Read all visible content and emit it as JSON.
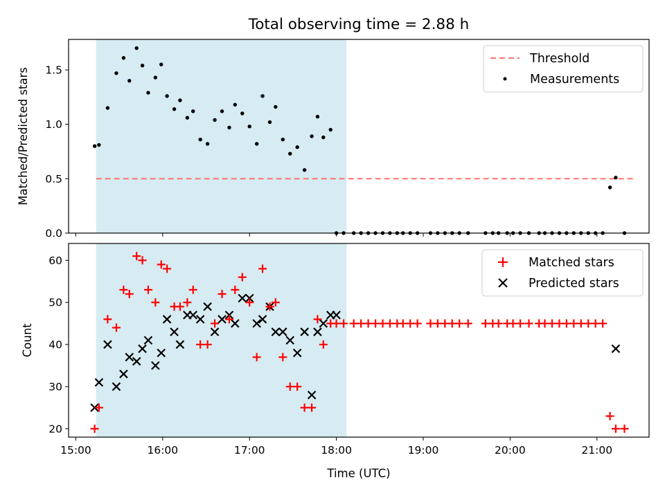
{
  "chart_data": {
    "type": "scatter",
    "title": "Total observing time = 2.88 h",
    "xlabel": "Time (UTC)",
    "x_ticks": [
      "15:00",
      "16:00",
      "17:00",
      "18:00",
      "19:00",
      "20:00",
      "21:00"
    ],
    "observing_window": {
      "start": "15:14",
      "end": "18:07"
    },
    "colors": {
      "window": "#add8e6",
      "threshold": "#ff7070",
      "matched": "#ff0000",
      "predicted": "#000000",
      "measurements": "#000000"
    },
    "top": {
      "ylabel": "Matched/Predicted stars",
      "ylim": [
        0,
        1.78
      ],
      "y_ticks": [
        "0.0",
        "0.5",
        "1.0",
        "1.5"
      ],
      "threshold": {
        "name": "Threshold",
        "value": 0.5,
        "x_range": [
          "15:14",
          "21:27"
        ]
      },
      "legend": [
        "Threshold",
        "Measurements"
      ],
      "measurements": {
        "name": "Measurements",
        "x": [
          "15:13",
          "15:16",
          "15:22",
          "15:28",
          "15:33",
          "15:37",
          "15:42",
          "15:46",
          "15:50",
          "15:55",
          "15:59",
          "16:03",
          "16:08",
          "16:12",
          "16:17",
          "16:21",
          "16:26",
          "16:31",
          "16:36",
          "16:41",
          "16:46",
          "16:50",
          "16:55",
          "17:00",
          "17:05",
          "17:09",
          "17:14",
          "17:18",
          "17:23",
          "17:28",
          "17:33",
          "17:38",
          "17:43",
          "17:47",
          "17:51",
          "17:56",
          "18:00",
          "18:05",
          "18:12",
          "18:17",
          "18:22",
          "18:27",
          "18:32",
          "18:37",
          "18:42",
          "18:46",
          "18:51",
          "18:56",
          "19:05",
          "19:10",
          "19:15",
          "19:20",
          "19:25",
          "19:31",
          "19:43",
          "19:48",
          "19:52",
          "19:58",
          "20:02",
          "20:07",
          "20:13",
          "20:20",
          "20:24",
          "20:29",
          "20:34",
          "20:39",
          "20:44",
          "20:49",
          "20:54",
          "20:59",
          "21:04",
          "21:09",
          "21:13",
          "21:19"
        ],
        "y": [
          0.8,
          0.81,
          1.15,
          1.47,
          1.61,
          1.4,
          1.7,
          1.54,
          1.29,
          1.43,
          1.55,
          1.26,
          1.14,
          1.22,
          1.06,
          1.12,
          0.86,
          0.82,
          1.04,
          1.12,
          0.97,
          1.18,
          1.1,
          0.98,
          0.82,
          1.26,
          1.02,
          1.16,
          0.86,
          0.73,
          0.79,
          0.58,
          0.89,
          1.07,
          0.88,
          0.95,
          0,
          0,
          0,
          0,
          0,
          0,
          0,
          0,
          0,
          0,
          0,
          0,
          0,
          0,
          0,
          0,
          0,
          0,
          0,
          0,
          0,
          0,
          0,
          0,
          0,
          0,
          0,
          0,
          0,
          0,
          0,
          0,
          0,
          0,
          0,
          0.42,
          0.51,
          0
        ]
      }
    },
    "bottom": {
      "ylabel": "Count",
      "ylim": [
        18,
        64
      ],
      "y_ticks": [
        "20",
        "30",
        "40",
        "50",
        "60"
      ],
      "legend": [
        "Matched stars",
        "Predicted stars"
      ],
      "series": [
        {
          "name": "Matched stars",
          "marker": "+",
          "x": [
            "15:13",
            "15:16",
            "15:22",
            "15:28",
            "15:33",
            "15:37",
            "15:42",
            "15:46",
            "15:50",
            "15:55",
            "15:59",
            "16:03",
            "16:08",
            "16:12",
            "16:17",
            "16:21",
            "16:26",
            "16:31",
            "16:36",
            "16:41",
            "16:46",
            "16:50",
            "16:55",
            "17:00",
            "17:05",
            "17:09",
            "17:14",
            "17:18",
            "17:23",
            "17:28",
            "17:33",
            "17:38",
            "17:43",
            "17:47",
            "17:51",
            "17:56",
            "18:00",
            "18:05",
            "18:12",
            "18:17",
            "18:22",
            "18:27",
            "18:32",
            "18:37",
            "18:42",
            "18:46",
            "18:51",
            "18:56",
            "19:05",
            "19:10",
            "19:15",
            "19:20",
            "19:25",
            "19:31",
            "19:43",
            "19:48",
            "19:52",
            "19:58",
            "20:02",
            "20:07",
            "20:13",
            "20:20",
            "20:24",
            "20:29",
            "20:34",
            "20:39",
            "20:44",
            "20:49",
            "20:54",
            "20:59",
            "21:04",
            "21:09",
            "21:13",
            "21:19"
          ],
          "y": [
            20,
            25,
            46,
            44,
            53,
            52,
            61,
            60,
            53,
            50,
            59,
            58,
            49,
            49,
            50,
            53,
            40,
            40,
            45,
            52,
            46,
            53,
            56,
            50,
            37,
            58,
            49,
            50,
            37,
            30,
            30,
            25,
            25,
            46,
            40,
            45,
            45,
            45,
            45,
            45,
            45,
            45,
            45,
            45,
            45,
            45,
            45,
            45,
            45,
            45,
            45,
            45,
            45,
            45,
            45,
            45,
            45,
            45,
            45,
            45,
            45,
            45,
            45,
            45,
            45,
            45,
            45,
            45,
            45,
            45,
            45,
            23,
            20,
            20
          ]
        },
        {
          "name": "Predicted stars",
          "marker": "x",
          "x": [
            "15:13",
            "15:16",
            "15:22",
            "15:28",
            "15:33",
            "15:37",
            "15:42",
            "15:46",
            "15:50",
            "15:55",
            "15:59",
            "16:03",
            "16:08",
            "16:12",
            "16:17",
            "16:21",
            "16:26",
            "16:31",
            "16:36",
            "16:41",
            "16:46",
            "16:50",
            "16:55",
            "17:00",
            "17:05",
            "17:09",
            "17:14",
            "17:18",
            "17:23",
            "17:28",
            "17:33",
            "17:38",
            "17:43",
            "17:47",
            "17:51",
            "17:56",
            "18:00",
            "21:13"
          ],
          "y": [
            25,
            31,
            40,
            30,
            33,
            37,
            36,
            39,
            41,
            35,
            38,
            46,
            43,
            40,
            47,
            47,
            46,
            49,
            43,
            46,
            47,
            45,
            51,
            51,
            45,
            46,
            49,
            43,
            43,
            41,
            38,
            43,
            28,
            43,
            45,
            47,
            47,
            39
          ]
        }
      ]
    }
  }
}
